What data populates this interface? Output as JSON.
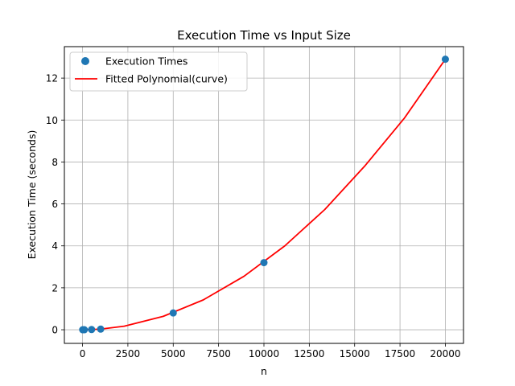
{
  "chart_data": {
    "type": "scatter",
    "title": "Execution Time vs Input Size",
    "xlabel": "n",
    "ylabel": "Execution Time (seconds)",
    "xlim": [
      -1000,
      21000
    ],
    "ylim": [
      -0.65,
      13.5
    ],
    "xticks": [
      0,
      2500,
      5000,
      7500,
      10000,
      12500,
      15000,
      17500,
      20000
    ],
    "xtick_labels": [
      "0",
      "2500",
      "5000",
      "7500",
      "10000",
      "12500",
      "15000",
      "17500",
      "20000"
    ],
    "yticks": [
      0,
      2,
      4,
      6,
      8,
      10,
      12
    ],
    "ytick_labels": [
      "0",
      "2",
      "4",
      "6",
      "8",
      "10",
      "12"
    ],
    "grid": true,
    "legend_position": "top-left",
    "series": [
      {
        "name": "Execution Times",
        "kind": "scatter",
        "color": "#1f77b4",
        "x": [
          10,
          100,
          500,
          1000,
          5000,
          10000,
          20000
        ],
        "y": [
          0.0,
          0.0,
          0.01,
          0.03,
          0.8,
          3.2,
          12.9
        ]
      },
      {
        "name": "Fitted Polynomial(curve)",
        "kind": "line",
        "color": "#ff0000",
        "x": [
          10,
          100,
          500,
          1000,
          2300,
          4450,
          6650,
          8900,
          11150,
          13350,
          15550,
          17750,
          20000
        ],
        "y": [
          0.0,
          0.0,
          0.01,
          0.03,
          0.17,
          0.64,
          1.42,
          2.55,
          4.0,
          5.73,
          7.8,
          10.1,
          12.9
        ]
      }
    ]
  }
}
